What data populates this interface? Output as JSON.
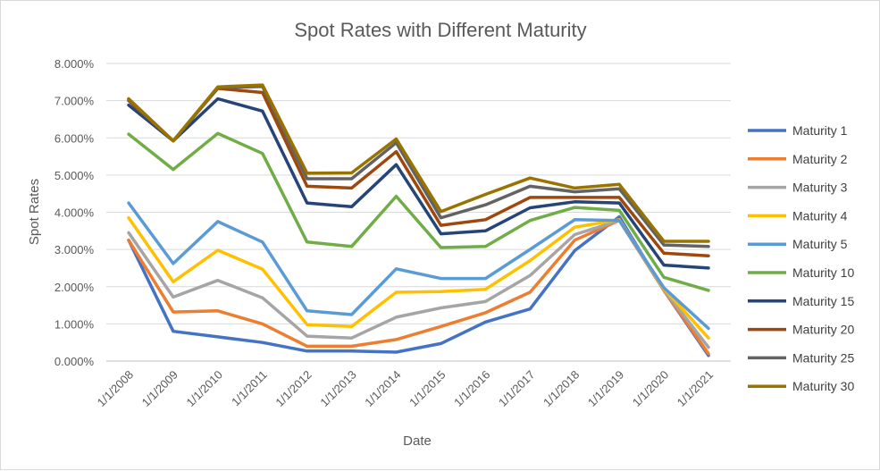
{
  "chart_data": {
    "type": "line",
    "title": "Spot Rates with Different Maturity",
    "xlabel": "Date",
    "ylabel": "Spot Rates",
    "ylim": [
      0,
      0.08
    ],
    "y_ticks": [
      "0.000%",
      "1.000%",
      "2.000%",
      "3.000%",
      "4.000%",
      "5.000%",
      "6.000%",
      "7.000%",
      "8.000%"
    ],
    "grid": true,
    "legend_position": "right",
    "categories": [
      "1/1/2008",
      "1/1/2009",
      "1/1/2010",
      "1/1/2011",
      "1/1/2012",
      "1/1/2013",
      "1/1/2014",
      "1/1/2015",
      "1/1/2016",
      "1/1/2017",
      "1/1/2018",
      "1/1/2019",
      "1/1/2020",
      "1/1/2021"
    ],
    "series": [
      {
        "name": "Maturity 1",
        "color": "#4472C4",
        "values": [
          0.0325,
          0.008,
          0.0065,
          0.005,
          0.0027,
          0.0027,
          0.0024,
          0.0047,
          0.0105,
          0.014,
          0.0297,
          0.0388,
          0.019,
          0.0015
        ]
      },
      {
        "name": "Maturity 2",
        "color": "#ED7D31",
        "values": [
          0.0325,
          0.0132,
          0.0135,
          0.01,
          0.004,
          0.004,
          0.0058,
          0.0093,
          0.013,
          0.0185,
          0.0325,
          0.0378,
          0.019,
          0.002
        ]
      },
      {
        "name": "Maturity 3",
        "color": "#A5A5A5",
        "values": [
          0.0345,
          0.0172,
          0.0217,
          0.017,
          0.0067,
          0.0062,
          0.0118,
          0.0143,
          0.016,
          0.023,
          0.034,
          0.0378,
          0.0192,
          0.0037
        ]
      },
      {
        "name": "Maturity 4",
        "color": "#FFC000",
        "values": [
          0.0385,
          0.0213,
          0.0298,
          0.0247,
          0.0098,
          0.0093,
          0.0185,
          0.0187,
          0.0193,
          0.027,
          0.036,
          0.038,
          0.0195,
          0.0062
        ]
      },
      {
        "name": "Maturity 5",
        "color": "#5B9BD5",
        "values": [
          0.0425,
          0.0262,
          0.0375,
          0.032,
          0.0135,
          0.0125,
          0.0248,
          0.0222,
          0.0222,
          0.03,
          0.038,
          0.0378,
          0.0197,
          0.0088
        ]
      },
      {
        "name": "Maturity 10",
        "color": "#70AD47",
        "values": [
          0.061,
          0.0515,
          0.0612,
          0.0558,
          0.032,
          0.0308,
          0.0443,
          0.0305,
          0.0308,
          0.0378,
          0.0413,
          0.0405,
          0.0225,
          0.019
        ]
      },
      {
        "name": "Maturity 15",
        "color": "#264478",
        "values": [
          0.0688,
          0.0592,
          0.0705,
          0.0672,
          0.0425,
          0.0415,
          0.0528,
          0.0342,
          0.035,
          0.0412,
          0.0428,
          0.0425,
          0.0258,
          0.025
        ]
      },
      {
        "name": "Maturity 20",
        "color": "#9E480E",
        "values": [
          0.07,
          0.0592,
          0.0733,
          0.0722,
          0.047,
          0.0465,
          0.0563,
          0.0365,
          0.038,
          0.044,
          0.044,
          0.044,
          0.029,
          0.0283
        ]
      },
      {
        "name": "Maturity 25",
        "color": "#636363",
        "values": [
          0.0702,
          0.0592,
          0.0735,
          0.0738,
          0.049,
          0.049,
          0.0587,
          0.0385,
          0.042,
          0.047,
          0.0455,
          0.0463,
          0.0312,
          0.0308
        ]
      },
      {
        "name": "Maturity 30",
        "color": "#997300",
        "values": [
          0.0705,
          0.0592,
          0.0737,
          0.0742,
          0.0505,
          0.0506,
          0.0597,
          0.0402,
          0.0448,
          0.0492,
          0.0465,
          0.0475,
          0.0322,
          0.0322
        ]
      }
    ]
  }
}
